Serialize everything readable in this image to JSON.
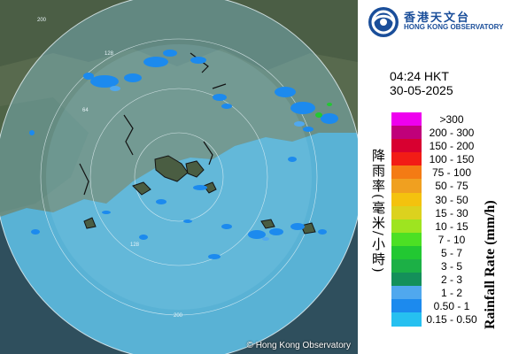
{
  "logo": {
    "chinese": "香港天文台",
    "english": "HONG KONG OBSERVATORY",
    "colors": {
      "blue": "#1a4e9a"
    }
  },
  "time": "04:24 HKT",
  "date": "30-05-2025",
  "map": {
    "copyright": "© Hong Kong Observatory",
    "range_labels": [
      "64",
      "128",
      "200",
      "128",
      "200"
    ]
  },
  "legend": {
    "title_zh": "降雨率(毫米/小時)",
    "title_en": "Rainfall Rate (mm/h)",
    "items": [
      {
        "label": ">300",
        "color": "#ee00ee"
      },
      {
        "label": "200 - 300",
        "color": "#c0007a"
      },
      {
        "label": "150 - 200",
        "color": "#d80030"
      },
      {
        "label": "100 - 150",
        "color": "#f21c16"
      },
      {
        "label": "75 - 100",
        "color": "#f47b14"
      },
      {
        "label": "50 - 75",
        "color": "#f0a020"
      },
      {
        "label": "30 - 50",
        "color": "#f4c20e"
      },
      {
        "label": "15 - 30",
        "color": "#dcd21e"
      },
      {
        "label": "10 - 15",
        "color": "#9ee420"
      },
      {
        "label": "7 - 10",
        "color": "#4ce024"
      },
      {
        "label": "5 - 7",
        "color": "#22c832"
      },
      {
        "label": "3 - 5",
        "color": "#1cb046"
      },
      {
        "label": "2 - 3",
        "color": "#14905a"
      },
      {
        "label": "1 - 2",
        "color": "#50a8ee"
      },
      {
        "label": "0.50 - 1",
        "color": "#1c8aee"
      },
      {
        "label": "0.15 - 0.50",
        "color": "#26c0f0"
      }
    ]
  }
}
